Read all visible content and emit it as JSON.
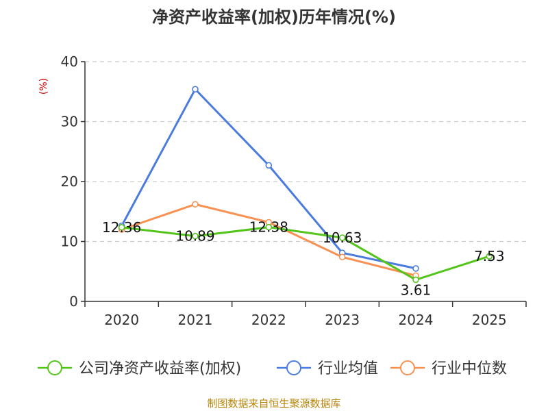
{
  "chart_data": {
    "type": "line",
    "title": "净资产收益率(加权)历年情况(%)",
    "ylabel": "(%)",
    "xlabel": "",
    "categories": [
      "2020",
      "2021",
      "2022",
      "2023",
      "2024",
      "2025"
    ],
    "ylim": [
      0,
      40
    ],
    "yticks": [
      0,
      10,
      20,
      30,
      40
    ],
    "grid": true,
    "legend_position": "bottom",
    "series": [
      {
        "name": "公司净资产收益率(加权)",
        "color": "#52c41a",
        "values": [
          12.36,
          10.89,
          12.38,
          10.63,
          3.61,
          7.53
        ],
        "labels": [
          "12.36",
          "10.89",
          "12.38",
          "10.63",
          "3.61",
          "7.53"
        ]
      },
      {
        "name": "行业均值",
        "color": "#4b7bde",
        "values": [
          12.6,
          35.4,
          22.7,
          8.1,
          5.5,
          null
        ]
      },
      {
        "name": "行业中位数",
        "color": "#f79154",
        "values": [
          12.0,
          16.2,
          13.2,
          7.4,
          4.3,
          null
        ]
      }
    ]
  },
  "source": "制图数据来自恒生聚源数据库"
}
